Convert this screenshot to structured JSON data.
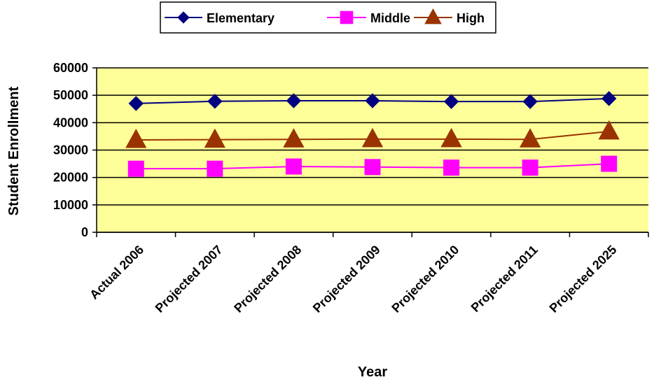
{
  "chart_data": {
    "type": "line",
    "categories": [
      "Actual 2006",
      "Projected 2007",
      "Projected 2008",
      "Projected 2009",
      "Projected 2010",
      "Projected 2011",
      "Projected 2025"
    ],
    "series": [
      {
        "name": "Elementary",
        "values": [
          47000,
          47800,
          48000,
          48000,
          47700,
          47700,
          48800
        ],
        "color": "#000080",
        "marker": "diamond"
      },
      {
        "name": "Middle",
        "values": [
          23200,
          23200,
          24000,
          23800,
          23600,
          23600,
          25000
        ],
        "color": "#FF00FF",
        "marker": "square"
      },
      {
        "name": "High",
        "values": [
          33700,
          33800,
          33900,
          34000,
          34000,
          33900,
          36800
        ],
        "color": "#993300",
        "marker": "triangle"
      }
    ],
    "title": "",
    "xlabel": "Year",
    "ylabel": "Student Enrollment",
    "ylim": [
      0,
      60000
    ],
    "yticks": [
      "0",
      "10000",
      "20000",
      "30000",
      "40000",
      "50000",
      "60000"
    ],
    "grid": true,
    "legend_position": "top",
    "plot_background": "#FFFF99"
  }
}
